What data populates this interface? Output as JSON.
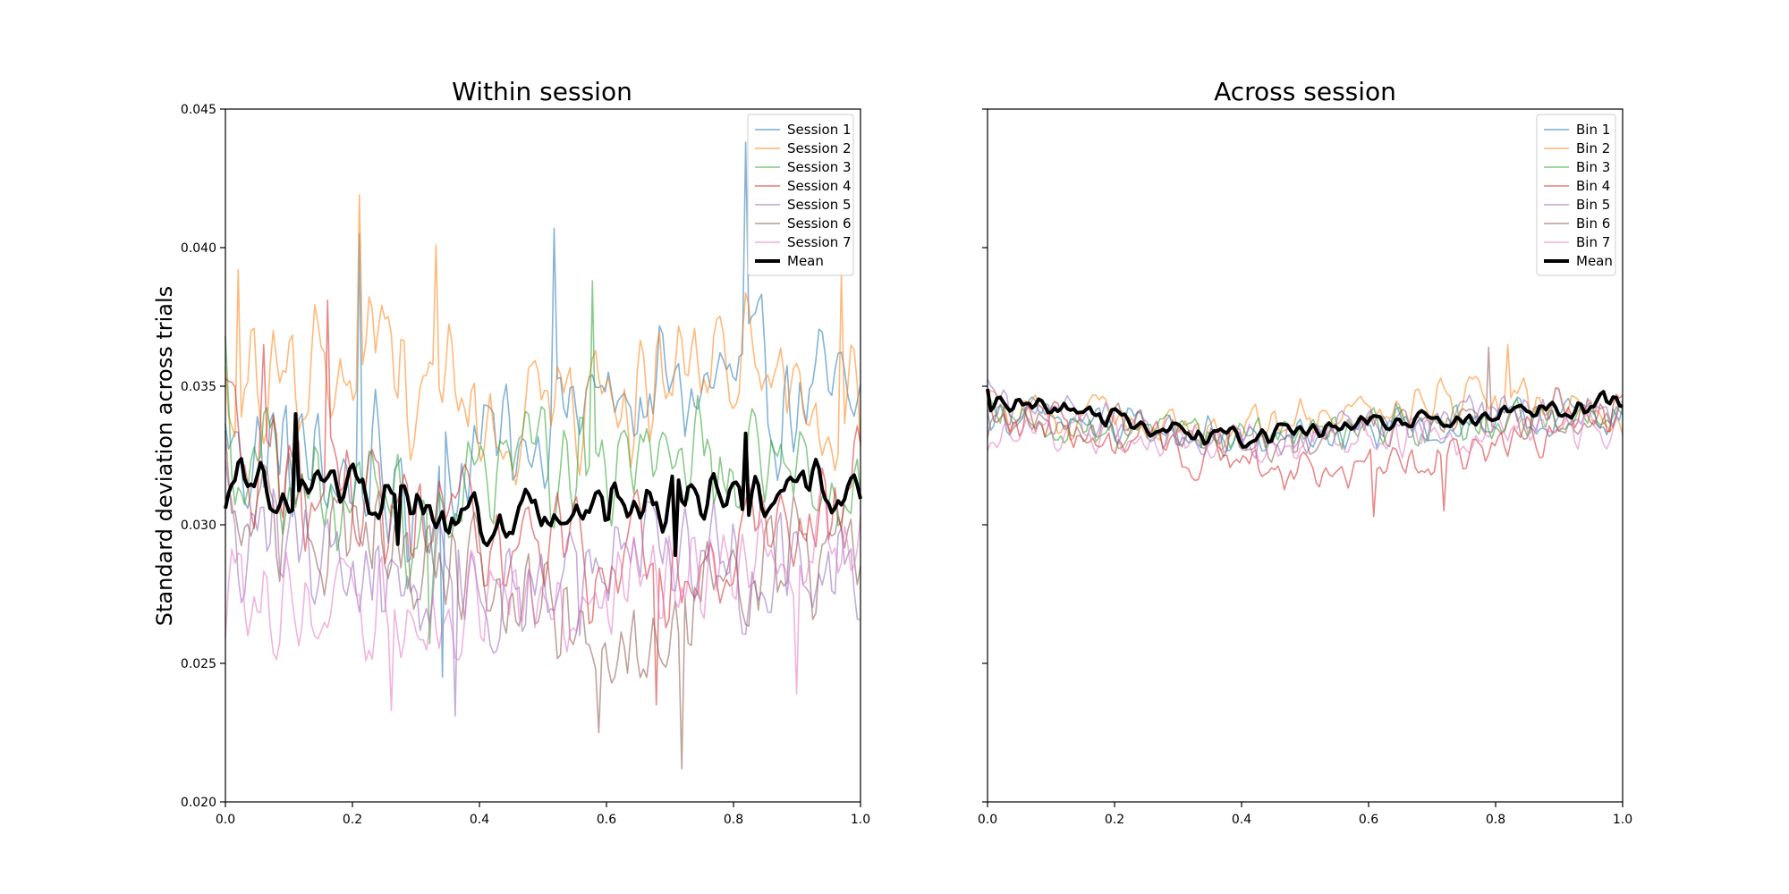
{
  "chart_data": [
    {
      "type": "line",
      "title": "Within session",
      "xlabel": "",
      "ylabel": "Standard deviation across trials",
      "xlim": [
        0.0,
        1.0
      ],
      "ylim": [
        0.02,
        0.045
      ],
      "xticks": [
        "0.0",
        "0.2",
        "0.4",
        "0.6",
        "0.8",
        "1.0"
      ],
      "yticks": [
        "0.020",
        "0.025",
        "0.030",
        "0.035",
        "0.040",
        "0.045"
      ],
      "legend_position": "top-right",
      "n_points": 200,
      "series": [
        {
          "name": "Session 1",
          "color": "#1f77b4",
          "mean": 0.032,
          "amplitude": 0.0042,
          "trend": [
            [
              0.0,
              0.033
            ],
            [
              0.3,
              0.031
            ],
            [
              0.5,
              0.034
            ],
            [
              0.8,
              0.035
            ],
            [
              1.0,
              0.034
            ]
          ],
          "peaks": [
            [
              0.21,
              0.0405
            ],
            [
              0.52,
              0.0407
            ],
            [
              0.82,
              0.0438
            ],
            [
              0.34,
              0.0245
            ]
          ]
        },
        {
          "name": "Session 2",
          "color": "#ff7f0e",
          "mean": 0.0345,
          "amplitude": 0.004,
          "trend": [
            [
              0.0,
              0.035
            ],
            [
              0.2,
              0.036
            ],
            [
              0.5,
              0.034
            ],
            [
              0.8,
              0.035
            ],
            [
              1.0,
              0.035
            ]
          ],
          "peaks": [
            [
              0.21,
              0.0419
            ],
            [
              0.02,
              0.0392
            ],
            [
              0.33,
              0.0401
            ],
            [
              0.97,
              0.0391
            ]
          ]
        },
        {
          "name": "Session 3",
          "color": "#2ca02c",
          "mean": 0.0315,
          "amplitude": 0.0035,
          "trend": [
            [
              0.0,
              0.033
            ],
            [
              0.3,
              0.03
            ],
            [
              0.6,
              0.033
            ],
            [
              1.0,
              0.031
            ]
          ],
          "peaks": [
            [
              0.58,
              0.0388
            ],
            [
              0.32,
              0.0257
            ],
            [
              0.0,
              0.0368
            ]
          ]
        },
        {
          "name": "Session 4",
          "color": "#d62728",
          "mean": 0.0305,
          "amplitude": 0.0035,
          "trend": [
            [
              0.0,
              0.033
            ],
            [
              0.3,
              0.03
            ],
            [
              0.7,
              0.028
            ],
            [
              1.0,
              0.031
            ]
          ],
          "peaks": [
            [
              0.16,
              0.0381
            ],
            [
              0.06,
              0.0365
            ],
            [
              0.68,
              0.0235
            ]
          ]
        },
        {
          "name": "Session 5",
          "color": "#9467bd",
          "mean": 0.0285,
          "amplitude": 0.0035,
          "trend": [
            [
              0.0,
              0.03
            ],
            [
              0.4,
              0.027
            ],
            [
              0.7,
              0.029
            ],
            [
              1.0,
              0.029
            ]
          ],
          "peaks": [
            [
              0.36,
              0.0231
            ],
            [
              0.56,
              0.026
            ]
          ]
        },
        {
          "name": "Session 6",
          "color": "#8c564b",
          "mean": 0.0283,
          "amplitude": 0.0035,
          "trend": [
            [
              0.0,
              0.031
            ],
            [
              0.4,
              0.028
            ],
            [
              0.6,
              0.026
            ],
            [
              1.0,
              0.029
            ]
          ],
          "peaks": [
            [
              0.72,
              0.0212
            ],
            [
              0.59,
              0.0225
            ]
          ]
        },
        {
          "name": "Session 7",
          "color": "#e377c2",
          "mean": 0.0282,
          "amplitude": 0.0032,
          "trend": [
            [
              0.0,
              0.028
            ],
            [
              0.3,
              0.027
            ],
            [
              0.7,
              0.028
            ],
            [
              1.0,
              0.029
            ]
          ],
          "peaks": [
            [
              0.26,
              0.0233
            ],
            [
              0.9,
              0.0239
            ]
          ]
        },
        {
          "name": "Mean",
          "color": "#000000",
          "mean": 0.031,
          "amplitude": 0.0013,
          "trend": [
            [
              0.0,
              0.0315
            ],
            [
              0.2,
              0.0315
            ],
            [
              0.4,
              0.03
            ],
            [
              0.6,
              0.0308
            ],
            [
              0.8,
              0.031
            ],
            [
              1.0,
              0.0315
            ]
          ],
          "peaks": [
            [
              0.11,
              0.034
            ],
            [
              0.82,
              0.0333
            ],
            [
              0.27,
              0.0293
            ],
            [
              0.71,
              0.0289
            ]
          ]
        }
      ]
    },
    {
      "type": "line",
      "title": "Across session",
      "xlabel": "",
      "ylabel": "",
      "xlim": [
        0.0,
        1.0
      ],
      "ylim": [
        0.02,
        0.045
      ],
      "xticks": [
        "0.0",
        "0.2",
        "0.4",
        "0.6",
        "0.8",
        "1.0"
      ],
      "yticks": [
        "",
        "",
        "",
        "",
        "",
        ""
      ],
      "legend_position": "top-right",
      "n_points": 200,
      "series": [
        {
          "name": "Bin 1",
          "color": "#1f77b4",
          "mean": 0.0335,
          "amplitude": 0.0012,
          "trend": [
            [
              0.0,
              0.034
            ],
            [
              0.4,
              0.033
            ],
            [
              1.0,
              0.034
            ]
          ],
          "peaks": []
        },
        {
          "name": "Bin 2",
          "color": "#ff7f0e",
          "mean": 0.0338,
          "amplitude": 0.0013,
          "trend": [
            [
              0.0,
              0.034
            ],
            [
              0.4,
              0.0335
            ],
            [
              0.8,
              0.0345
            ],
            [
              1.0,
              0.034
            ]
          ],
          "peaks": [
            [
              0.82,
              0.0365
            ]
          ]
        },
        {
          "name": "Bin 3",
          "color": "#2ca02c",
          "mean": 0.0335,
          "amplitude": 0.0012,
          "trend": [
            [
              0.0,
              0.034
            ],
            [
              0.4,
              0.033
            ],
            [
              1.0,
              0.034
            ]
          ],
          "peaks": []
        },
        {
          "name": "Bin 4",
          "color": "#d62728",
          "mean": 0.033,
          "amplitude": 0.0013,
          "trend": [
            [
              0.0,
              0.034
            ],
            [
              0.45,
              0.032
            ],
            [
              0.65,
              0.032
            ],
            [
              1.0,
              0.034
            ]
          ],
          "peaks": [
            [
              0.61,
              0.0303
            ],
            [
              0.72,
              0.0305
            ]
          ]
        },
        {
          "name": "Bin 5",
          "color": "#9467bd",
          "mean": 0.0337,
          "amplitude": 0.0012,
          "trend": [
            [
              0.0,
              0.0345
            ],
            [
              0.4,
              0.033
            ],
            [
              1.0,
              0.0345
            ]
          ],
          "peaks": []
        },
        {
          "name": "Bin 6",
          "color": "#8c564b",
          "mean": 0.0335,
          "amplitude": 0.0012,
          "trend": [
            [
              0.0,
              0.034
            ],
            [
              0.4,
              0.033
            ],
            [
              1.0,
              0.034
            ]
          ],
          "peaks": [
            [
              0.79,
              0.0364
            ]
          ]
        },
        {
          "name": "Bin 7",
          "color": "#e377c2",
          "mean": 0.0333,
          "amplitude": 0.0012,
          "trend": [
            [
              0.0,
              0.0335
            ],
            [
              0.4,
              0.033
            ],
            [
              1.0,
              0.0335
            ]
          ],
          "peaks": []
        },
        {
          "name": "Mean",
          "color": "#000000",
          "mean": 0.0337,
          "amplitude": 0.0005,
          "trend": [
            [
              0.0,
              0.0345
            ],
            [
              0.1,
              0.0343
            ],
            [
              0.25,
              0.0335
            ],
            [
              0.4,
              0.0332
            ],
            [
              0.55,
              0.0335
            ],
            [
              0.7,
              0.0338
            ],
            [
              0.85,
              0.034
            ],
            [
              1.0,
              0.0345
            ]
          ],
          "peaks": [
            [
              0.0,
              0.0349
            ],
            [
              0.97,
              0.0348
            ]
          ]
        }
      ]
    }
  ]
}
